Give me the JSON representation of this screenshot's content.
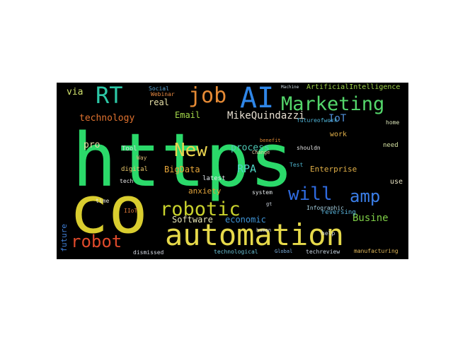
{
  "words": [
    {
      "text": "https",
      "color": "#2bd96a",
      "vertical": false
    },
    {
      "text": "co",
      "color": "#d9cd2f",
      "vertical": false
    },
    {
      "text": "AI",
      "color": "#2f86e8",
      "vertical": false
    },
    {
      "text": "automation",
      "color": "#e6d94a",
      "vertical": false
    },
    {
      "text": "Marketing",
      "color": "#54d76b",
      "vertical": false
    },
    {
      "text": "RT",
      "color": "#2cc7a6",
      "vertical": false
    },
    {
      "text": "job",
      "color": "#e68a35",
      "vertical": false
    },
    {
      "text": "robotic",
      "color": "#c8d12d",
      "vertical": false
    },
    {
      "text": "robot",
      "color": "#e04a2b",
      "vertical": false
    },
    {
      "text": "New",
      "color": "#e9d34f",
      "vertical": false
    },
    {
      "text": "will",
      "color": "#2f6be0",
      "vertical": false
    },
    {
      "text": "amp",
      "color": "#3a7de6",
      "vertical": false
    },
    {
      "text": "MikeQuindazzi",
      "color": "#e8e0d2",
      "vertical": false
    },
    {
      "text": "technology",
      "color": "#e0722f",
      "vertical": false
    },
    {
      "text": "Software",
      "color": "#e5e4b5",
      "vertical": false
    },
    {
      "text": "economic",
      "color": "#3f93d4",
      "vertical": false
    },
    {
      "text": "Busine",
      "color": "#7fcf47",
      "vertical": false
    },
    {
      "text": "process",
      "color": "#4ec9b5",
      "vertical": false
    },
    {
      "text": "BigData",
      "color": "#e8a63a",
      "vertical": false
    },
    {
      "text": "RPA",
      "color": "#4fd4c4",
      "vertical": false
    },
    {
      "text": "IoT",
      "color": "#4f8fd8",
      "vertical": false
    },
    {
      "text": "Email",
      "color": "#a4d84a",
      "vertical": false
    },
    {
      "text": "ArtificialIntelligence",
      "color": "#9fd34a",
      "vertical": false
    },
    {
      "text": "via",
      "color": "#cfe06b",
      "vertical": false
    },
    {
      "text": "real",
      "color": "#e9e2a8",
      "vertical": false
    },
    {
      "text": "pro",
      "color": "#e5d9a3",
      "vertical": false
    },
    {
      "text": "future",
      "color": "#3f7fd6",
      "vertical": true
    },
    {
      "text": "anxiety",
      "color": "#e0a23a",
      "vertical": false
    },
    {
      "text": "Enterprise",
      "color": "#e2b048",
      "vertical": false
    },
    {
      "text": "reversing",
      "color": "#5bb8e0",
      "vertical": false
    },
    {
      "text": "futureofwork",
      "color": "#4fb4d6",
      "vertical": false
    },
    {
      "text": "technological",
      "color": "#6bc3d7",
      "vertical": false
    },
    {
      "text": "techreview",
      "color": "#c9d6e2",
      "vertical": false
    },
    {
      "text": "manufacturing",
      "color": "#e1b85a",
      "vertical": false
    },
    {
      "text": "dismissed",
      "color": "#d8dce6",
      "vertical": false
    },
    {
      "text": "Infographic",
      "color": "#a6d0e0",
      "vertical": false
    },
    {
      "text": "Test",
      "color": "#4cb1c9",
      "vertical": false
    },
    {
      "text": "work",
      "color": "#e0b04a",
      "vertical": false
    },
    {
      "text": "need",
      "color": "#d6e3a3",
      "vertical": false
    },
    {
      "text": "use",
      "color": "#e9e4c4",
      "vertical": false
    },
    {
      "text": "home",
      "color": "#d9e2b7",
      "vertical": false
    },
    {
      "text": "latest",
      "color": "#e3e9ee",
      "vertical": false
    },
    {
      "text": "digital",
      "color": "#e8c76b",
      "vertical": false
    },
    {
      "text": "tech",
      "color": "#e3e3e3",
      "vertical": false
    },
    {
      "text": "Tool",
      "color": "#d4d9e0",
      "vertical": false
    },
    {
      "text": "Way",
      "color": "#d1b270",
      "vertical": false
    },
    {
      "text": "time",
      "color": "#e6e6d6",
      "vertical": false
    },
    {
      "text": "IIoT",
      "color": "#e07a3a",
      "vertical": false
    },
    {
      "text": "Social",
      "color": "#5aa6d6",
      "vertical": false
    },
    {
      "text": "Webinar",
      "color": "#e88a43",
      "vertical": false
    },
    {
      "text": "benefit",
      "color": "#e08a35",
      "vertical": false
    },
    {
      "text": "system",
      "color": "#e2e6e8",
      "vertical": false
    },
    {
      "text": "human",
      "color": "#d0d6de",
      "vertical": false
    },
    {
      "text": "Change",
      "color": "#e6d1a3",
      "vertical": false
    },
    {
      "text": "shouldn",
      "color": "#e3e3e3",
      "vertical": false
    },
    {
      "text": "help",
      "color": "#d4dbe2",
      "vertical": false
    },
    {
      "text": "Global",
      "color": "#7fb2e0",
      "vertical": false
    },
    {
      "text": "gt",
      "color": "#c9d0da",
      "vertical": false
    },
    {
      "text": "Machine",
      "color": "#c9d6de",
      "vertical": false
    }
  ]
}
